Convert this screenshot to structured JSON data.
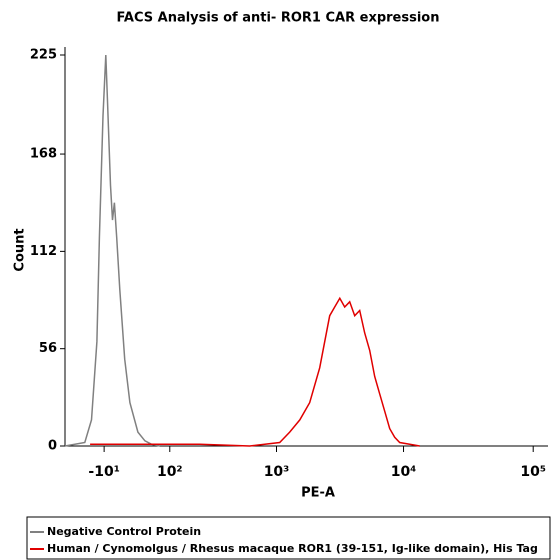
{
  "chart_data": {
    "type": "line",
    "title": "FACS Analysis of anti- ROR1 CAR expression",
    "x_label": "PE-A",
    "y_label": "Count",
    "xscale": "logicle",
    "xlim": [
      -35,
      130000
    ],
    "xticks": [
      {
        "value": -10,
        "label": "-10¹"
      },
      {
        "value": 100,
        "label": "10²"
      },
      {
        "value": 1000,
        "label": "10³"
      },
      {
        "value": 10000,
        "label": "10⁴"
      },
      {
        "value": 100000,
        "label": "10⁵"
      }
    ],
    "ylim": [
      0,
      225
    ],
    "yticks": [
      0,
      56,
      112,
      168,
      225
    ],
    "series": [
      {
        "name": "Negative Control Protein",
        "color": "#808080",
        "x": [
          -35,
          -24.5,
          -20,
          -16,
          -14,
          -11,
          -8.5,
          -7,
          -4,
          -2,
          0,
          2.5,
          6,
          12,
          19,
          31,
          43,
          56,
          74
        ],
        "values": [
          0,
          2,
          15,
          60,
          120,
          190,
          225,
          200,
          150,
          130,
          140,
          120,
          90,
          50,
          25,
          8,
          3,
          1,
          0
        ]
      },
      {
        "name": "Human / Cynomolgus / Rhesus macaque ROR1 (39-151, Ig-like domain), His Tag",
        "color": "#e00000",
        "x": [
          -21,
          52,
          212,
          599,
          1062,
          1280,
          1540,
          1850,
          2220,
          2430,
          2662,
          2912,
          3191,
          3488,
          3813,
          4176,
          4564,
          4998,
          5461,
          5979,
          6532,
          7151,
          7810,
          8550,
          9337,
          11160,
          13340
        ],
        "values": [
          1,
          1,
          1,
          0,
          2,
          8,
          15,
          25,
          45,
          60,
          75,
          80,
          85,
          80,
          83,
          75,
          78,
          65,
          55,
          40,
          30,
          20,
          10,
          5,
          2,
          1,
          0
        ]
      }
    ]
  }
}
